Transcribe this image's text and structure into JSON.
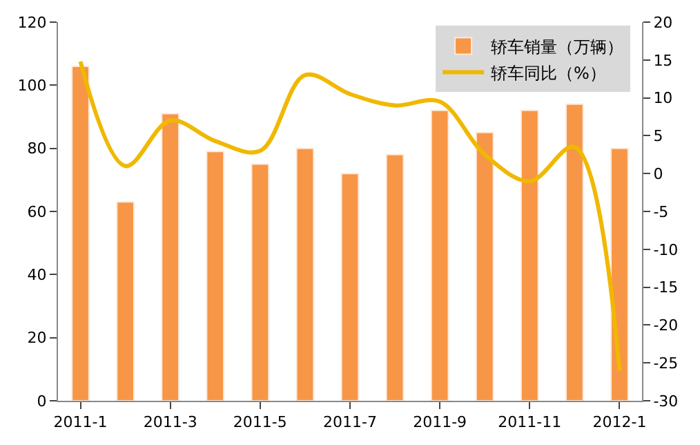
{
  "chart_data": {
    "type": "bar",
    "categories": [
      "2011-1",
      null,
      "2011-3",
      null,
      "2011-5",
      null,
      "2011-7",
      null,
      "2011-9",
      null,
      "2011-11",
      null,
      "2012-1"
    ],
    "series": [
      {
        "name": "轿车销量（万辆）",
        "color": "#f79646",
        "values": [
          106,
          63,
          91,
          79,
          75,
          80,
          72,
          78,
          92,
          85,
          92,
          94,
          80
        ]
      },
      {
        "name": "轿车同比（%）",
        "type": "line",
        "axis": "y2",
        "color": "#f0b800",
        "values": [
          14.8,
          1,
          7,
          4.3,
          3,
          13,
          10.5,
          9,
          9.5,
          2.5,
          -1,
          3.5,
          -26
        ]
      }
    ],
    "ylim": [
      0,
      120
    ],
    "yticks": [
      0,
      20,
      40,
      60,
      80,
      100,
      120
    ],
    "y2lim": [
      -30,
      20
    ],
    "y2ticks": [
      -30,
      -25,
      -20,
      -15,
      -10,
      -5,
      0,
      5,
      10,
      15,
      20
    ],
    "legend": "top right"
  }
}
